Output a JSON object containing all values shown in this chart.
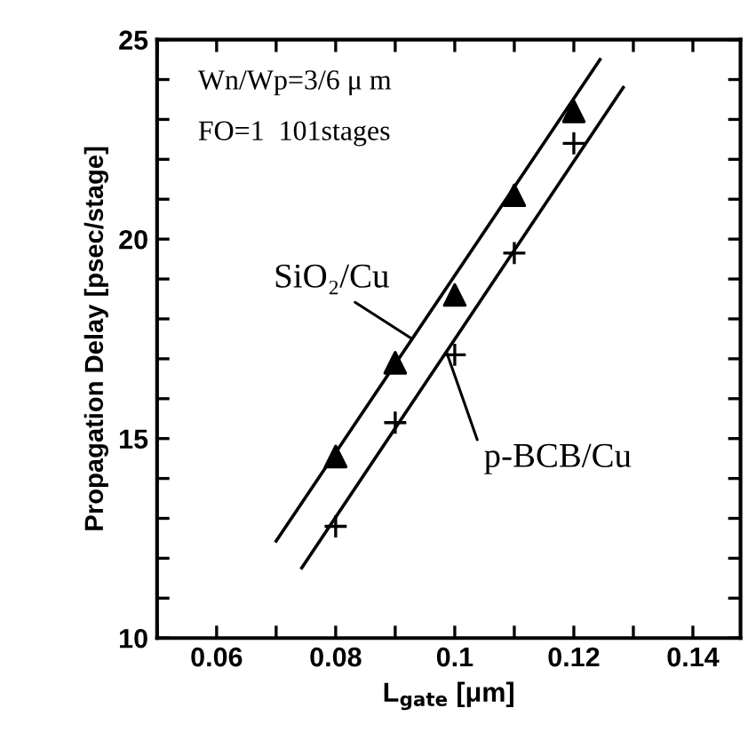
{
  "chart_data": {
    "type": "scatter",
    "xlabel": "L$_{gate}$ [μm]",
    "ylabel": "Propagation Delay [psec/stage]",
    "annotations": [
      "Wn/Wp=3/6 μ m",
      "FO=1  101stages"
    ],
    "xlim": [
      0.05,
      0.148
    ],
    "ylim": [
      10,
      25
    ],
    "xticks": [
      {
        "value": 0.05,
        "label": null
      },
      0.06,
      {
        "value": 0.07,
        "label": null
      },
      0.08,
      {
        "value": 0.09,
        "label": null
      },
      {
        "value": 0.1,
        "label": "0.1"
      },
      {
        "value": 0.11,
        "label": null
      },
      0.12,
      {
        "value": 0.13,
        "label": null
      },
      0.14
    ],
    "yticks": [
      10,
      {
        "value": 11,
        "label": null
      },
      {
        "value": 12,
        "label": null
      },
      {
        "value": 13,
        "label": null
      },
      {
        "value": 14,
        "label": null
      },
      15,
      {
        "value": 16,
        "label": null
      },
      {
        "value": 17,
        "label": null
      },
      {
        "value": 18,
        "label": null
      },
      {
        "value": 19,
        "label": null
      },
      20,
      {
        "value": 21,
        "label": null
      },
      {
        "value": 22,
        "label": null
      },
      {
        "value": 23,
        "label": null
      },
      {
        "value": 24,
        "label": null
      },
      25
    ],
    "grid": false,
    "legend": false,
    "series": [
      {
        "name": "SiO₂/Cu",
        "marker": "triangle",
        "color": "#000000",
        "x": [
          0.08,
          0.09,
          0.1,
          0.11,
          0.12
        ],
        "values": [
          14.55,
          16.9,
          18.6,
          21.1,
          23.2
        ]
      },
      {
        "name": "p-BCB/Cu",
        "marker": "cross",
        "color": "#000000",
        "x": [
          0.08,
          0.09,
          0.1,
          0.11,
          0.12
        ],
        "values": [
          12.8,
          15.4,
          17.1,
          19.65,
          22.4
        ]
      },
      {
        "type": "line",
        "marker": "none",
        "line_style": "solid",
        "color": "#000000",
        "x": [
          0.07,
          0.1244
        ],
        "values": [
          12.43,
          24.5
        ]
      },
      {
        "type": "line",
        "marker": "none",
        "line_style": "solid",
        "color": "#000000",
        "x": [
          0.0743,
          0.1283
        ],
        "values": [
          11.76,
          23.8
        ]
      }
    ]
  }
}
